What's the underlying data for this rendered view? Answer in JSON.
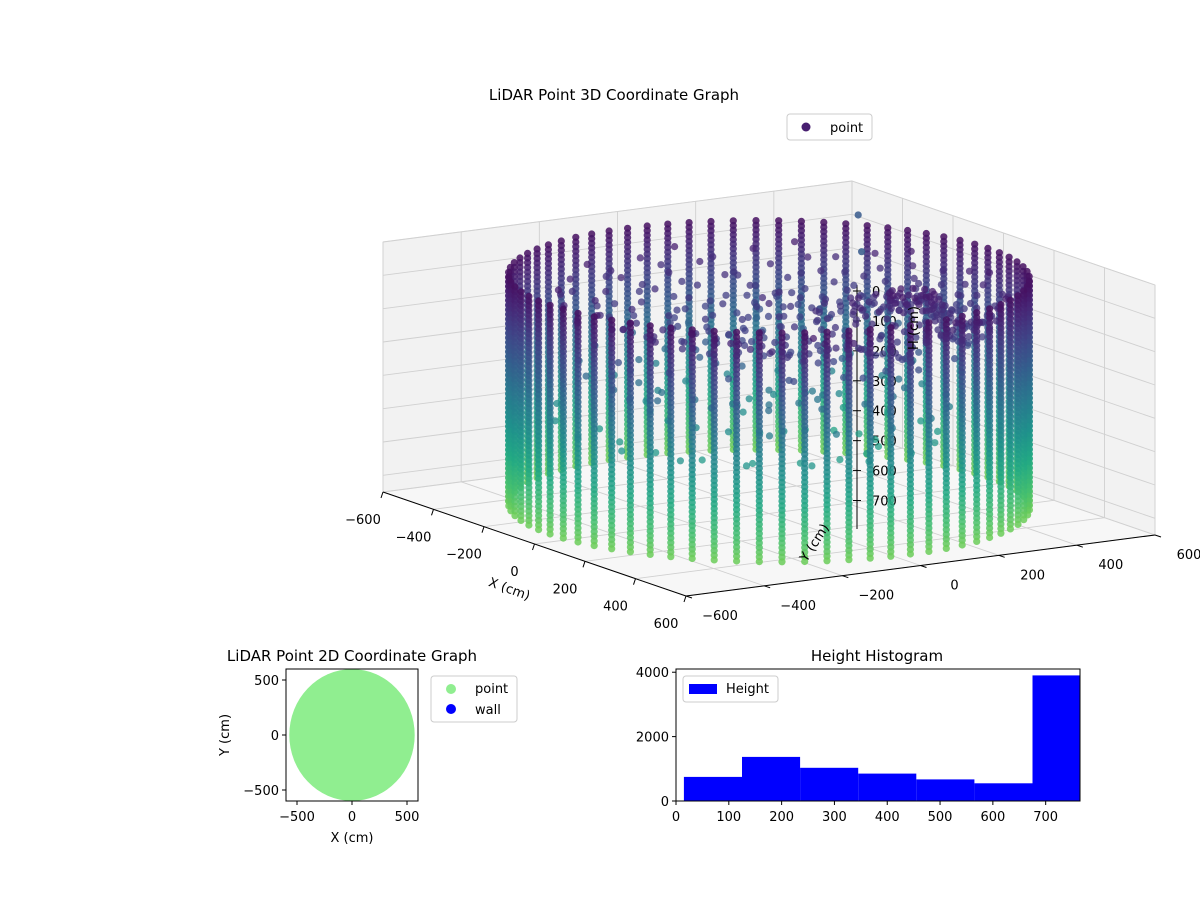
{
  "chart_data": [
    {
      "type": "scatter3d",
      "title": "LiDAR Point 3D Coordinate Graph",
      "xlabel": "X (cm)",
      "ylabel": "Y (cm)",
      "zlabel": "H (cm)",
      "xlim": [
        -600,
        600
      ],
      "ylim": [
        -600,
        600
      ],
      "zlim": [
        0,
        750
      ],
      "z_inverted": true,
      "xticks": [
        "−600",
        "−400",
        "−200",
        "0",
        "200",
        "400",
        "600"
      ],
      "yticks": [
        "−600",
        "−400",
        "−200",
        "0",
        "200",
        "400",
        "600"
      ],
      "zticks": [
        "0",
        "100",
        "200",
        "300",
        "400",
        "500",
        "600",
        "700"
      ],
      "grid": true,
      "legend": {
        "placement": "top-right",
        "entries": [
          {
            "label": "point",
            "color": "#481f70"
          }
        ]
      },
      "colormap": "viridis",
      "wall": {
        "radius_cm": 560,
        "columns": 72,
        "height_range_cm": [
          40,
          730
        ]
      },
      "roof_rays": 34,
      "outliers": [
        {
          "x": -560,
          "y": 590,
          "h": 90
        },
        {
          "x": -500,
          "y": 560,
          "h": 180
        }
      ]
    },
    {
      "type": "scatter",
      "title": "LiDAR Point 2D Coordinate Graph",
      "xlabel": "X (cm)",
      "ylabel": "Y (cm)",
      "xlim": [
        -600,
        600
      ],
      "ylim": [
        -600,
        600
      ],
      "xticks": [
        "−500",
        "0",
        "500"
      ],
      "yticks": [
        "−500",
        "0",
        "500"
      ],
      "series": [
        {
          "name": "point",
          "color": "#90ee90",
          "region": "disk",
          "radius_cm": 570
        },
        {
          "name": "wall",
          "color": "#0000ff",
          "region": "none"
        }
      ],
      "legend": {
        "placement": "outside-right"
      }
    },
    {
      "type": "bar",
      "title": "Height Histogram",
      "xlim": [
        0,
        765
      ],
      "ylim": [
        0,
        4100
      ],
      "xticks": [
        "0",
        "100",
        "200",
        "300",
        "400",
        "500",
        "600",
        "700"
      ],
      "yticks": [
        "0",
        "2000",
        "4000"
      ],
      "bins": [
        {
          "from": 15,
          "to": 125,
          "count": 750
        },
        {
          "from": 125,
          "to": 235,
          "count": 1370
        },
        {
          "from": 235,
          "to": 345,
          "count": 1030
        },
        {
          "from": 345,
          "to": 455,
          "count": 850
        },
        {
          "from": 455,
          "to": 565,
          "count": 670
        },
        {
          "from": 565,
          "to": 675,
          "count": 550
        },
        {
          "from": 675,
          "to": 765,
          "count": 3900
        }
      ],
      "series": [
        {
          "name": "Height",
          "color": "#0000ff"
        }
      ],
      "legend": {
        "placement": "top-left"
      }
    }
  ]
}
